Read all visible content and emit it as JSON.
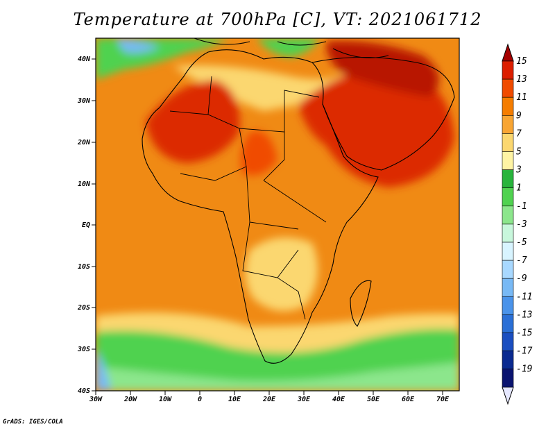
{
  "title": "Temperature at 700hPa [C], VT: 2021061712",
  "credit": "GrADS: IGES/COLA",
  "map": {
    "lat_labels": [
      "40N",
      "30N",
      "20N",
      "10N",
      "EQ",
      "10S",
      "20S",
      "30S",
      "40S"
    ],
    "lon_labels": [
      "30W",
      "20W",
      "10W",
      "0",
      "10E",
      "20E",
      "30E",
      "40E",
      "50E",
      "60E",
      "70E"
    ]
  },
  "colorbar": {
    "labels": [
      "15",
      "13",
      "11",
      "9",
      "7",
      "5",
      "3",
      "1",
      "-1",
      "-3",
      "-5",
      "-7",
      "-9",
      "-11",
      "-13",
      "-15",
      "-17",
      "-19"
    ],
    "colors": [
      "#a50000",
      "#dc1e00",
      "#f04b00",
      "#f57d00",
      "#f8a533",
      "#fbd770",
      "#fff4a4",
      "#28b43c",
      "#50d250",
      "#8ce68c",
      "#c8f7dc",
      "#d8f4ff",
      "#a8d8ff",
      "#78b9f5",
      "#4a93ea",
      "#2a6fd6",
      "#1a4ec0",
      "#0a2a90",
      "#0a1470",
      "#e6e8ff"
    ]
  },
  "colors": {
    "hot": "#dc2a00",
    "warm": "#f08a14",
    "mild": "#fbd770",
    "cool": "#50d250",
    "cold": "#78b9f5",
    "border": "#000000"
  }
}
